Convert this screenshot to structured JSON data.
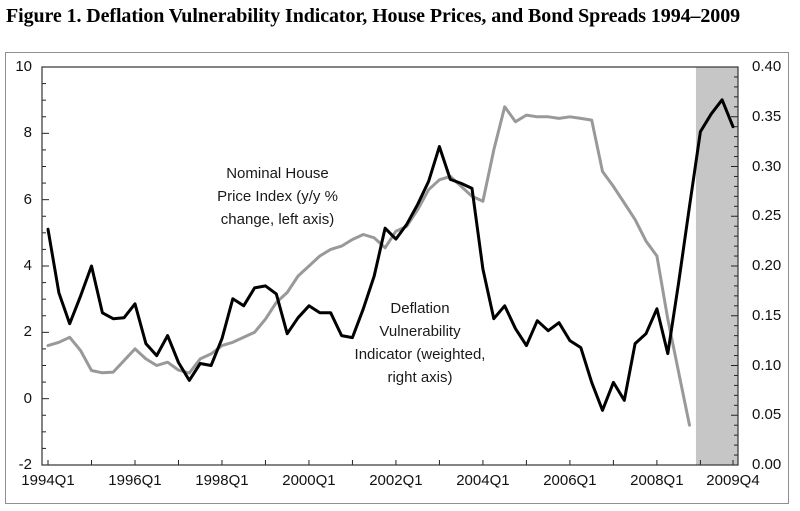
{
  "title": "Figure 1. Deflation Vulnerability Indicator, House Prices, and Bond Spreads 1994–2009",
  "annotations": {
    "house_price_label": "Nominal House\nPrice Index (y/y %\nchange, left axis)",
    "dvi_label": "Deflation\nVulnerability\nIndicator (weighted,\nright axis)"
  },
  "chart_data": {
    "type": "line",
    "title": "Figure 1. Deflation Vulnerability Indicator, House Prices, and Bond Spreads 1994–2009",
    "x_frequency": "quarterly",
    "x_start": "1994Q1",
    "x_end": "2009Q4",
    "x_tick_labels": [
      "1994Q1",
      "1996Q1",
      "1998Q1",
      "2000Q1",
      "2002Q1",
      "2004Q1",
      "2006Q1",
      "2008Q1",
      "2009Q4"
    ],
    "x_tick_quarter_index": [
      0,
      8,
      16,
      24,
      32,
      40,
      48,
      56,
      63
    ],
    "left_axis": {
      "range": [
        -2,
        10
      ],
      "tick_labels": [
        "10",
        "8",
        "6",
        "4",
        "2",
        "0",
        "-2"
      ],
      "minor_tick_step": 0.5
    },
    "right_axis": {
      "range": [
        0,
        0.4
      ],
      "tick_labels": [
        "0.40",
        "0.35",
        "0.30",
        "0.25",
        "0.20",
        "0.15",
        "0.10",
        "0.05",
        "0.00"
      ],
      "minor_tick_step": 0.01
    },
    "grid": false,
    "legend_position": "annotations-inside-plot",
    "shaded_region": {
      "from": "2009Q1",
      "to": "2009Q4",
      "color": "#c6c6c6"
    },
    "series": [
      {
        "name": "Nominal House Price Index (y/y % change)",
        "axis": "left",
        "color": "#999999",
        "start_quarter": "1994Q1",
        "end_quarter": "2008Q4",
        "values": [
          1.6,
          1.7,
          1.85,
          1.45,
          0.85,
          0.78,
          0.8,
          1.15,
          1.5,
          1.2,
          1.0,
          1.1,
          0.86,
          0.77,
          1.2,
          1.35,
          1.6,
          1.7,
          1.85,
          2.0,
          2.4,
          2.9,
          3.2,
          3.7,
          4.0,
          4.3,
          4.5,
          4.6,
          4.8,
          4.95,
          4.85,
          4.55,
          5.05,
          5.2,
          5.7,
          6.3,
          6.6,
          6.7,
          6.4,
          6.1,
          5.95,
          7.5,
          8.8,
          8.35,
          8.55,
          8.5,
          8.5,
          8.45,
          8.5,
          8.45,
          8.4,
          6.85,
          6.4,
          5.9,
          5.4,
          4.75,
          4.3,
          2.4,
          0.8,
          -0.8
        ]
      },
      {
        "name": "Deflation Vulnerability Indicator (weighted)",
        "axis": "right",
        "color": "#000000",
        "start_quarter": "1994Q1",
        "end_quarter": "2009Q4",
        "values": [
          0.237,
          0.173,
          0.142,
          0.17,
          0.2,
          0.153,
          0.147,
          0.148,
          0.162,
          0.122,
          0.11,
          0.13,
          0.103,
          0.085,
          0.102,
          0.1,
          0.127,
          0.167,
          0.16,
          0.178,
          0.18,
          0.172,
          0.132,
          0.148,
          0.16,
          0.153,
          0.153,
          0.13,
          0.128,
          0.157,
          0.19,
          0.238,
          0.227,
          0.242,
          0.262,
          0.285,
          0.32,
          0.287,
          0.283,
          0.278,
          0.197,
          0.147,
          0.16,
          0.137,
          0.12,
          0.145,
          0.135,
          0.143,
          0.125,
          0.118,
          0.083,
          0.055,
          0.083,
          0.065,
          0.122,
          0.132,
          0.157,
          0.112,
          0.183,
          0.26,
          0.335,
          0.353,
          0.367,
          0.34
        ]
      }
    ]
  }
}
